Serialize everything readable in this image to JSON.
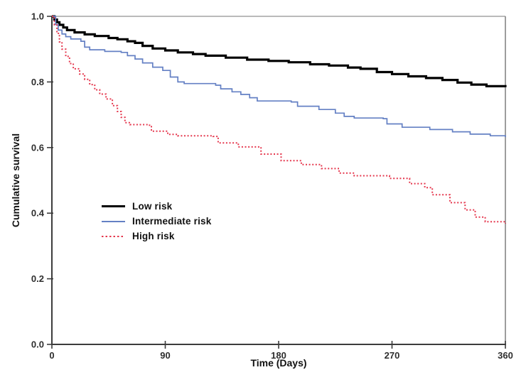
{
  "colors": {
    "background": "#ffffff",
    "axis": "#3c3c3c",
    "frame_top": "#a3a3a3",
    "frame_right": "#7d7d7d",
    "tick_label": "#2e2e2e",
    "low_risk": "#000000",
    "intermediate_risk": "#6480c4",
    "high_risk": "#e5394f"
  },
  "chart_data": {
    "type": "line",
    "subtype": "kaplan-meier-step-curves",
    "title": "",
    "xlabel": "Time (Days)",
    "ylabel": "Cumulative survival",
    "xlim": [
      0,
      360
    ],
    "ylim": [
      0.0,
      1.0
    ],
    "x_ticks": [
      "0",
      "90",
      "180",
      "270",
      "360"
    ],
    "y_ticks": [
      "0.0",
      "0.2",
      "0.4",
      "0.6",
      "0.8",
      "1.0"
    ],
    "grid": false,
    "frame": true,
    "legend_position": "inside-left-middle",
    "series": [
      {
        "name": "Low risk",
        "color": "#000000",
        "line_width": 3.2,
        "dash": "",
        "points": [
          [
            0,
            1.0
          ],
          [
            2,
            0.99
          ],
          [
            4,
            0.982
          ],
          [
            6,
            0.974
          ],
          [
            9,
            0.966
          ],
          [
            12,
            0.958
          ],
          [
            18,
            0.951
          ],
          [
            26,
            0.945
          ],
          [
            34,
            0.94
          ],
          [
            45,
            0.934
          ],
          [
            52,
            0.93
          ],
          [
            60,
            0.924
          ],
          [
            66,
            0.919
          ],
          [
            72,
            0.91
          ],
          [
            80,
            0.902
          ],
          [
            90,
            0.896
          ],
          [
            100,
            0.89
          ],
          [
            112,
            0.885
          ],
          [
            122,
            0.88
          ],
          [
            138,
            0.874
          ],
          [
            155,
            0.868
          ],
          [
            172,
            0.864
          ],
          [
            188,
            0.86
          ],
          [
            205,
            0.854
          ],
          [
            220,
            0.85
          ],
          [
            235,
            0.844
          ],
          [
            245,
            0.84
          ],
          [
            258,
            0.83
          ],
          [
            270,
            0.824
          ],
          [
            283,
            0.817
          ],
          [
            297,
            0.812
          ],
          [
            310,
            0.806
          ],
          [
            322,
            0.798
          ],
          [
            333,
            0.792
          ],
          [
            345,
            0.787
          ],
          [
            360,
            0.784
          ]
        ]
      },
      {
        "name": "Intermediate risk",
        "color": "#6480c4",
        "line_width": 1.7,
        "dash": "",
        "points": [
          [
            0,
            1.0
          ],
          [
            3,
            0.975
          ],
          [
            5,
            0.958
          ],
          [
            8,
            0.946
          ],
          [
            11,
            0.938
          ],
          [
            15,
            0.931
          ],
          [
            23,
            0.924
          ],
          [
            26,
            0.906
          ],
          [
            30,
            0.898
          ],
          [
            42,
            0.893
          ],
          [
            55,
            0.89
          ],
          [
            60,
            0.88
          ],
          [
            66,
            0.87
          ],
          [
            72,
            0.858
          ],
          [
            80,
            0.845
          ],
          [
            88,
            0.835
          ],
          [
            94,
            0.815
          ],
          [
            100,
            0.8
          ],
          [
            105,
            0.795
          ],
          [
            130,
            0.79
          ],
          [
            134,
            0.779
          ],
          [
            143,
            0.77
          ],
          [
            150,
            0.762
          ],
          [
            157,
            0.752
          ],
          [
            163,
            0.742
          ],
          [
            190,
            0.739
          ],
          [
            195,
            0.726
          ],
          [
            212,
            0.716
          ],
          [
            225,
            0.705
          ],
          [
            232,
            0.695
          ],
          [
            240,
            0.69
          ],
          [
            263,
            0.688
          ],
          [
            266,
            0.672
          ],
          [
            278,
            0.662
          ],
          [
            300,
            0.655
          ],
          [
            318,
            0.648
          ],
          [
            332,
            0.641
          ],
          [
            348,
            0.636
          ],
          [
            360,
            0.632
          ]
        ]
      },
      {
        "name": "High risk",
        "color": "#e5394f",
        "line_width": 2,
        "dash": "2 2.6",
        "points": [
          [
            0,
            1.0
          ],
          [
            2,
            0.974
          ],
          [
            4,
            0.948
          ],
          [
            6,
            0.922
          ],
          [
            8,
            0.9
          ],
          [
            11,
            0.878
          ],
          [
            14,
            0.856
          ],
          [
            17,
            0.84
          ],
          [
            22,
            0.824
          ],
          [
            26,
            0.808
          ],
          [
            30,
            0.792
          ],
          [
            34,
            0.776
          ],
          [
            38,
            0.763
          ],
          [
            43,
            0.748
          ],
          [
            48,
            0.728
          ],
          [
            52,
            0.71
          ],
          [
            55,
            0.692
          ],
          [
            58,
            0.676
          ],
          [
            62,
            0.67
          ],
          [
            76,
            0.668
          ],
          [
            79,
            0.65
          ],
          [
            92,
            0.64
          ],
          [
            100,
            0.636
          ],
          [
            128,
            0.634
          ],
          [
            132,
            0.614
          ],
          [
            148,
            0.602
          ],
          [
            166,
            0.58
          ],
          [
            182,
            0.56
          ],
          [
            198,
            0.548
          ],
          [
            214,
            0.536
          ],
          [
            228,
            0.522
          ],
          [
            240,
            0.514
          ],
          [
            268,
            0.506
          ],
          [
            284,
            0.49
          ],
          [
            296,
            0.478
          ],
          [
            302,
            0.456
          ],
          [
            316,
            0.432
          ],
          [
            328,
            0.41
          ],
          [
            336,
            0.388
          ],
          [
            344,
            0.374
          ],
          [
            360,
            0.368
          ]
        ]
      }
    ]
  }
}
